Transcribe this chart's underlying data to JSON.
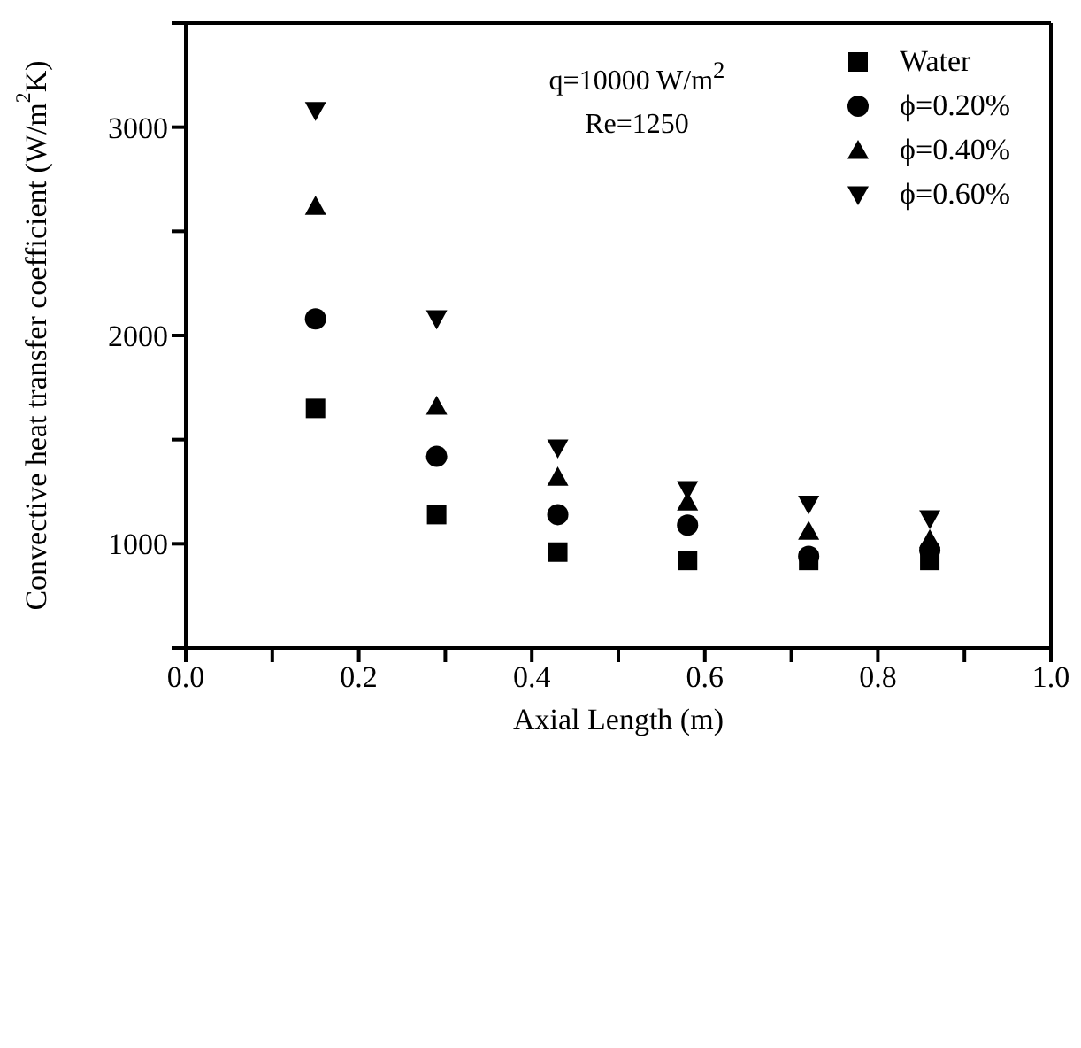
{
  "chart_data": {
    "type": "scatter",
    "xlabel": "Axial Length (m)",
    "ylabel": "Convective heat transfer coefficient (W/m$^{2}$K)",
    "annotations": [
      "q=10000 W/m$^{2}$",
      "Re=1250"
    ],
    "x": [
      0.15,
      0.29,
      0.43,
      0.58,
      0.72,
      0.86
    ],
    "series": [
      {
        "name": "Water",
        "color": "#000000",
        "marker": "square",
        "values": [
          1650,
          1140,
          960,
          920,
          920,
          920
        ]
      },
      {
        "name": "ϕ=0.20%",
        "color": "#000000",
        "marker": "circle",
        "values": [
          2080,
          1420,
          1140,
          1090,
          940,
          970
        ]
      },
      {
        "name": "ϕ=0.40%",
        "color": "#000000",
        "marker": "triangle",
        "values": [
          2620,
          1660,
          1320,
          1200,
          1060,
          1020
        ]
      },
      {
        "name": "ϕ=0.60%",
        "color": "#000000",
        "marker": "triangle-down",
        "values": [
          3080,
          2080,
          1460,
          1260,
          1190,
          1120
        ]
      }
    ],
    "xlim": [
      0,
      1
    ],
    "xticks": [
      {
        "value": 0,
        "label": "0.0"
      },
      {
        "value": 0.1,
        "label": null
      },
      {
        "value": 0.2,
        "label": "0.2"
      },
      {
        "value": 0.3,
        "label": null
      },
      {
        "value": 0.4,
        "label": "0.4"
      },
      {
        "value": 0.5,
        "label": null
      },
      {
        "value": 0.6,
        "label": "0.6"
      },
      {
        "value": 0.7,
        "label": null
      },
      {
        "value": 0.8,
        "label": "0.8"
      },
      {
        "value": 0.9,
        "label": null
      },
      {
        "value": 1,
        "label": "1.0"
      }
    ],
    "ylim": [
      500,
      3500
    ],
    "yticks": [
      {
        "value": 500,
        "label": null
      },
      1000,
      {
        "value": 1500,
        "label": null
      },
      2000,
      {
        "value": 2500,
        "label": null
      },
      3000,
      {
        "value": 3500,
        "label": null
      }
    ],
    "legend": "top right"
  }
}
